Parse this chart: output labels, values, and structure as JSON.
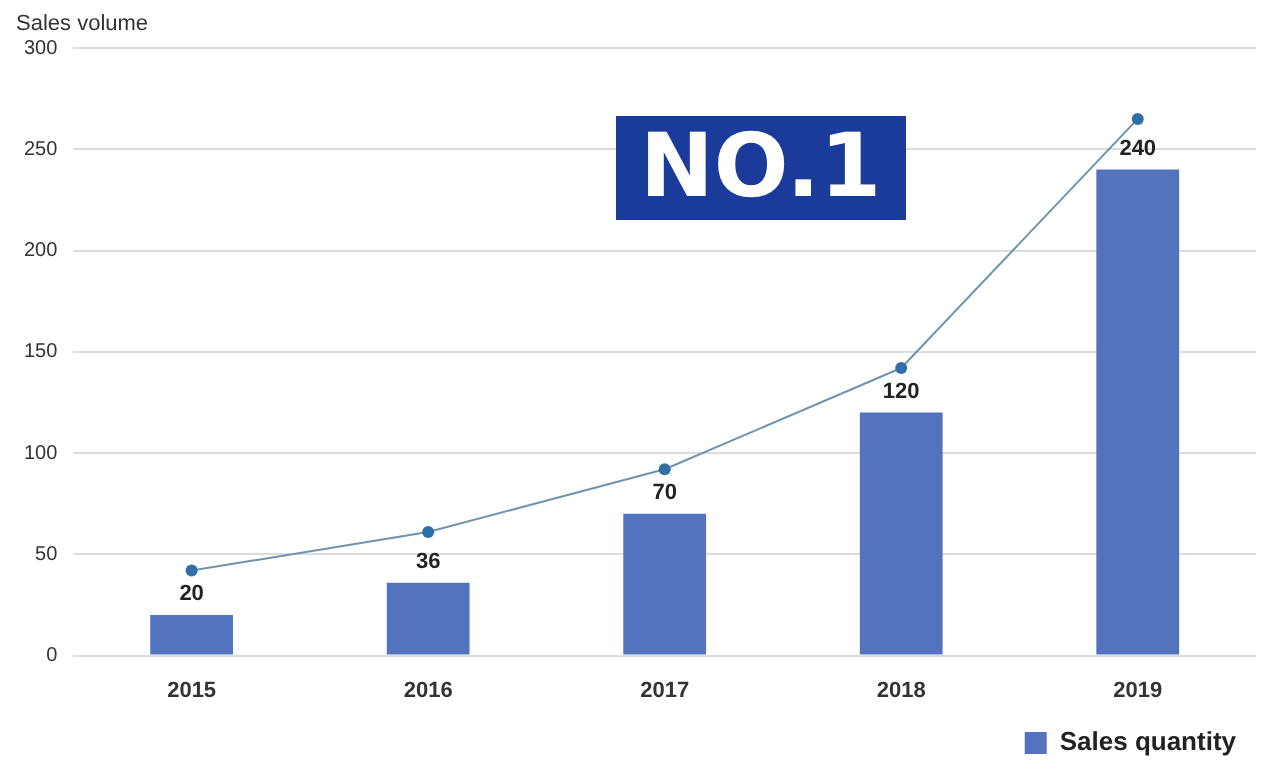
{
  "chart_data": {
    "type": "bar",
    "ylabel": "Sales volume",
    "categories": [
      "2015",
      "2016",
      "2017",
      "2018",
      "2019"
    ],
    "series": [
      {
        "name": "Sales quantity",
        "color": "#5473bf",
        "values": [
          20,
          36,
          70,
          120,
          240
        ],
        "value_labels": [
          "20",
          "36",
          "70",
          "120",
          "240"
        ]
      },
      {
        "type": "line",
        "color": "#6f93ad",
        "values": [
          42,
          61,
          92,
          142,
          265
        ],
        "marker": "circle"
      }
    ],
    "ylim": [
      0,
      300
    ],
    "yticks": [
      0,
      50,
      100,
      150,
      200,
      250,
      300
    ],
    "grid": "y",
    "legend": "bottom right",
    "annotations": [
      "NO.1"
    ]
  }
}
